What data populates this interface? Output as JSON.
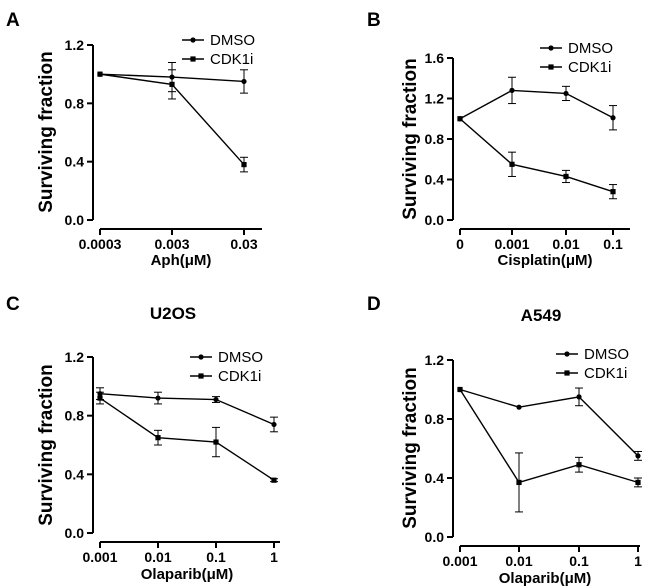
{
  "chart_data": [
    {
      "panel": "A",
      "type": "line",
      "title": "",
      "xlabel": "Aph(μM)",
      "ylabel": "Surviving fraction",
      "categories": [
        "0.0003",
        "0.003",
        "0.03"
      ],
      "yticks": [
        "0.0",
        "0.4",
        "0.8",
        "1.2"
      ],
      "ylim": [
        0,
        1.2
      ],
      "legend_position": "top-right",
      "series": [
        {
          "name": "DMSO",
          "marker": "circle",
          "values": [
            1.0,
            0.98,
            0.95
          ],
          "errors": [
            0.0,
            0.1,
            0.08
          ]
        },
        {
          "name": "CDK1i",
          "marker": "square",
          "values": [
            1.0,
            0.93,
            0.38
          ],
          "errors": [
            0.0,
            0.1,
            0.05
          ]
        }
      ]
    },
    {
      "panel": "B",
      "type": "line",
      "title": "",
      "xlabel": "Cisplatin(μM)",
      "ylabel": "Surviving fraction",
      "categories": [
        "0",
        "0.001",
        "0.01",
        "0.1"
      ],
      "yticks": [
        "0.0",
        "0.4",
        "0.8",
        "1.2",
        "1.6"
      ],
      "ylim": [
        0,
        1.6
      ],
      "legend_position": "top-right",
      "series": [
        {
          "name": "DMSO",
          "marker": "circle",
          "values": [
            1.0,
            1.28,
            1.25,
            1.01
          ],
          "errors": [
            0.0,
            0.13,
            0.07,
            0.12
          ]
        },
        {
          "name": "CDK1i",
          "marker": "square",
          "values": [
            1.0,
            0.55,
            0.43,
            0.28
          ],
          "errors": [
            0.0,
            0.12,
            0.06,
            0.07
          ]
        }
      ]
    },
    {
      "panel": "C",
      "type": "line",
      "title": "U2OS",
      "xlabel": "Olaparib(μM)",
      "ylabel": "Surviving fraction",
      "categories": [
        "0.001",
        "0.01",
        "0.1",
        "1"
      ],
      "yticks": [
        "0.0",
        "0.4",
        "0.8",
        "1.2"
      ],
      "ylim": [
        0,
        1.2
      ],
      "legend_position": "top-right",
      "series": [
        {
          "name": "DMSO",
          "marker": "circle",
          "values": [
            0.95,
            0.92,
            0.91,
            0.74
          ],
          "errors": [
            0.04,
            0.04,
            0.02,
            0.05
          ]
        },
        {
          "name": "CDK1i",
          "marker": "square",
          "values": [
            0.92,
            0.65,
            0.62,
            0.36
          ],
          "errors": [
            0.04,
            0.05,
            0.1,
            0.01
          ]
        }
      ]
    },
    {
      "panel": "D",
      "type": "line",
      "title": "A549",
      "xlabel": "Olaparib(μM)",
      "ylabel": "Surviving fraction",
      "categories": [
        "0.001",
        "0.01",
        "0.1",
        "1"
      ],
      "yticks": [
        "0.0",
        "0.4",
        "0.8",
        "1.2"
      ],
      "ylim": [
        0,
        1.2
      ],
      "legend_position": "top-right",
      "series": [
        {
          "name": "DMSO",
          "marker": "circle",
          "values": [
            1.0,
            0.88,
            0.95,
            0.55
          ],
          "errors": [
            0.0,
            0.0,
            0.06,
            0.03
          ]
        },
        {
          "name": "CDK1i",
          "marker": "square",
          "values": [
            1.0,
            0.37,
            0.49,
            0.37
          ],
          "errors": [
            0.0,
            0.2,
            0.05,
            0.03
          ]
        }
      ]
    }
  ]
}
